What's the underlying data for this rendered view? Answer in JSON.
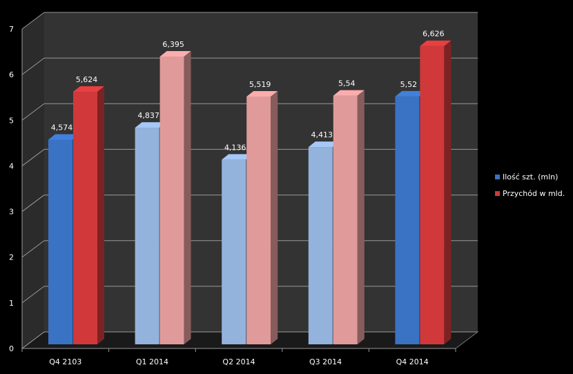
{
  "chart_data": {
    "type": "bar",
    "categories": [
      "Q4 2103",
      "Q1 2014",
      "Q2 2014",
      "Q3 2014",
      "Q4 2014"
    ],
    "series": [
      {
        "name": "Ilość szt. (mln)",
        "values": [
          4.574,
          4.837,
          4.136,
          4.413,
          5.52
        ],
        "labels": [
          "4,574",
          "4,837",
          "4,136",
          "4,413",
          "5,52"
        ],
        "color": "#3a72c4",
        "highlight": [
          true,
          false,
          false,
          false,
          true
        ],
        "light_color": "#94b3dc"
      },
      {
        "name": "Przychód w mld.",
        "values": [
          5.624,
          6.395,
          5.519,
          5.54,
          6.626
        ],
        "labels": [
          "5,624",
          "6,395",
          "5,519",
          "5,54",
          "6,626"
        ],
        "color": "#d0383a",
        "highlight": [
          true,
          false,
          false,
          false,
          true
        ],
        "light_color": "#e09a9a"
      }
    ],
    "y_ticks": [
      "0",
      "1",
      "2",
      "3",
      "4",
      "5",
      "6",
      "7"
    ],
    "ylim": [
      0,
      7
    ],
    "grid": true,
    "legend": "right",
    "background": "#333333",
    "three_d": true
  }
}
